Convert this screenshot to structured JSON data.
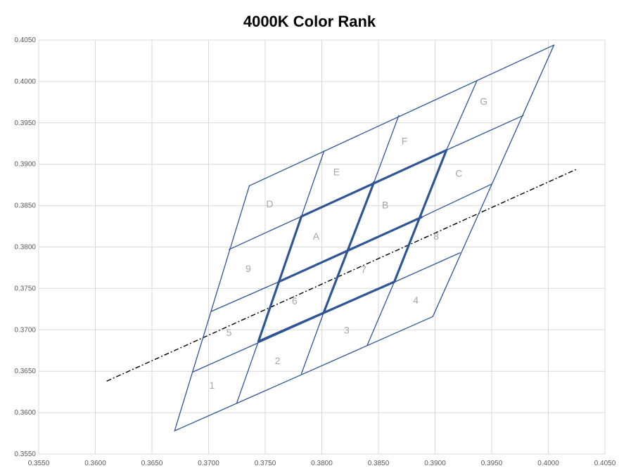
{
  "chart_data": {
    "type": "line",
    "title": "4000K Color Rank",
    "xlabel": "",
    "ylabel": "",
    "xlim": [
      0.355,
      0.405
    ],
    "ylim": [
      0.355,
      0.405
    ],
    "x_ticks": [
      "0.3550",
      "0.3600",
      "0.3650",
      "0.3700",
      "0.3750",
      "0.3800",
      "0.3850",
      "0.3900",
      "0.3950",
      "0.4000",
      "0.4050"
    ],
    "y_ticks": [
      "0.3550",
      "0.3600",
      "0.3650",
      "0.3700",
      "0.3750",
      "0.3800",
      "0.3850",
      "0.3900",
      "0.3950",
      "0.4000",
      "0.4050"
    ],
    "grid": "vertical and horizontal major gridlines",
    "colors": {
      "grid": "#d9d9d9",
      "bin_line": "#2f5597",
      "bin_line_alt": "#4472c4",
      "label": "#a6a6a6",
      "blackbody": "#000000"
    },
    "horizontal_lines": [
      {
        "points": [
          [
            0.367,
            0.3578
          ],
          [
            0.3898,
            0.3716
          ]
        ],
        "weight": "thin"
      },
      {
        "points": [
          [
            0.3686,
            0.3649
          ],
          [
            0.3922,
            0.3793
          ]
        ],
        "weight": "thin"
      },
      {
        "points": [
          [
            0.3744,
            0.3686
          ],
          [
            0.3864,
            0.3758
          ]
        ],
        "weight": "bold"
      },
      {
        "points": [
          [
            0.3702,
            0.3722
          ],
          [
            0.3762,
            0.3758
          ]
        ],
        "weight": "thin"
      },
      {
        "points": [
          [
            0.3762,
            0.3758
          ],
          [
            0.3888,
            0.3836
          ]
        ],
        "weight": "bold"
      },
      {
        "points": [
          [
            0.3888,
            0.3836
          ],
          [
            0.395,
            0.3876
          ]
        ],
        "weight": "thin"
      },
      {
        "points": [
          [
            0.3718,
            0.3797
          ],
          [
            0.3782,
            0.3837
          ]
        ],
        "weight": "thin"
      },
      {
        "points": [
          [
            0.3782,
            0.3837
          ],
          [
            0.391,
            0.3917
          ]
        ],
        "weight": "bold"
      },
      {
        "points": [
          [
            0.391,
            0.3917
          ],
          [
            0.3978,
            0.3959
          ]
        ],
        "weight": "thin"
      },
      {
        "points": [
          [
            0.3736,
            0.3874
          ],
          [
            0.4005,
            0.4044
          ]
        ],
        "weight": "thin"
      }
    ],
    "vertical_lines": [
      {
        "points": [
          [
            0.367,
            0.3578
          ],
          [
            0.3736,
            0.3874
          ]
        ],
        "weight": "thin"
      },
      {
        "points": [
          [
            0.3725,
            0.3612
          ],
          [
            0.3744,
            0.3686
          ]
        ],
        "weight": "thin"
      },
      {
        "points": [
          [
            0.3744,
            0.3686
          ],
          [
            0.3782,
            0.3837
          ]
        ],
        "weight": "bold"
      },
      {
        "points": [
          [
            0.3782,
            0.3837
          ],
          [
            0.3802,
            0.3916
          ]
        ],
        "weight": "thin"
      },
      {
        "points": [
          [
            0.3782,
            0.3647
          ],
          [
            0.3802,
            0.3722
          ]
        ],
        "weight": "thin"
      },
      {
        "points": [
          [
            0.3802,
            0.3722
          ],
          [
            0.3846,
            0.3878
          ]
        ],
        "weight": "bold"
      },
      {
        "points": [
          [
            0.3846,
            0.3878
          ],
          [
            0.3868,
            0.3959
          ]
        ],
        "weight": "thin"
      },
      {
        "points": [
          [
            0.384,
            0.3681
          ],
          [
            0.3864,
            0.3758
          ]
        ],
        "weight": "thin"
      },
      {
        "points": [
          [
            0.3864,
            0.3758
          ],
          [
            0.391,
            0.3917
          ]
        ],
        "weight": "bold"
      },
      {
        "points": [
          [
            0.391,
            0.3917
          ],
          [
            0.3937,
            0.4001
          ]
        ],
        "weight": "thin"
      },
      {
        "points": [
          [
            0.3898,
            0.3716
          ],
          [
            0.4005,
            0.4044
          ]
        ],
        "weight": "thin"
      }
    ],
    "blackbody_line": {
      "points": [
        [
          0.361,
          0.3638
        ],
        [
          0.4025,
          0.3894
        ]
      ],
      "style": "dash-dot"
    },
    "cell_labels": [
      {
        "text": "1",
        "x": 0.3703,
        "y": 0.3633
      },
      {
        "text": "2",
        "x": 0.3761,
        "y": 0.3663
      },
      {
        "text": "3",
        "x": 0.3822,
        "y": 0.37
      },
      {
        "text": "4",
        "x": 0.3883,
        "y": 0.3736
      },
      {
        "text": "5",
        "x": 0.3718,
        "y": 0.3697
      },
      {
        "text": "6",
        "x": 0.3776,
        "y": 0.3735
      },
      {
        "text": "7",
        "x": 0.3837,
        "y": 0.3773
      },
      {
        "text": "8",
        "x": 0.3901,
        "y": 0.3813
      },
      {
        "text": "9",
        "x": 0.3735,
        "y": 0.3774
      },
      {
        "text": "A",
        "x": 0.3795,
        "y": 0.3813
      },
      {
        "text": "B",
        "x": 0.3856,
        "y": 0.3851
      },
      {
        "text": "C",
        "x": 0.3921,
        "y": 0.3889
      },
      {
        "text": "D",
        "x": 0.3754,
        "y": 0.3852
      },
      {
        "text": "E",
        "x": 0.3813,
        "y": 0.3891
      },
      {
        "text": "F",
        "x": 0.3873,
        "y": 0.3928
      },
      {
        "text": "G",
        "x": 0.3943,
        "y": 0.3976
      }
    ]
  }
}
